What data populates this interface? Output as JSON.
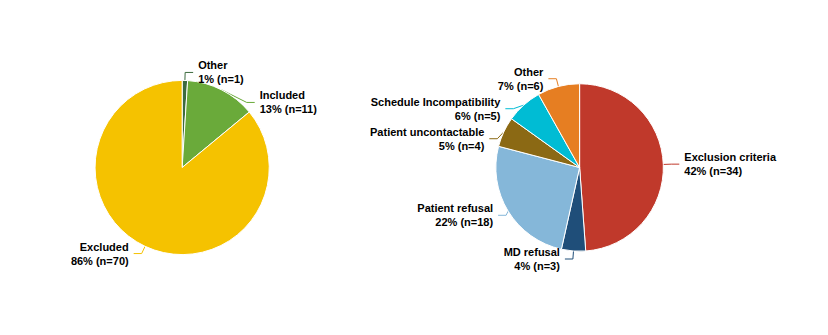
{
  "chart_data": [
    {
      "type": "pie",
      "categories": [
        "Other",
        "Included",
        "Excluded"
      ],
      "values": [
        1,
        13,
        86
      ],
      "value_labels": [
        "1% (n=1)",
        "13% (n=11)",
        "86% (n=70)"
      ],
      "colors": [
        "#3d6b3f",
        "#6aaa3a",
        "#f5c200"
      ],
      "data_labels": true
    },
    {
      "type": "pie",
      "categories": [
        "Exclusion criteria",
        "MD refusal",
        "Patient refusal",
        "Patient uncontactable",
        "Schedule Incompatibility",
        "Other"
      ],
      "values": [
        42,
        4,
        22,
        5,
        6,
        7
      ],
      "value_labels": [
        "42% (n=34)",
        "4% (n=3)",
        "22% (n=18)",
        "5% (n=4)",
        "6% (n=5)",
        "7% (n=6)"
      ],
      "colors": [
        "#c0392b",
        "#1f4e79",
        "#85b7d9",
        "#8b6914",
        "#00bcd4",
        "#e67e22"
      ],
      "data_labels": true
    }
  ]
}
